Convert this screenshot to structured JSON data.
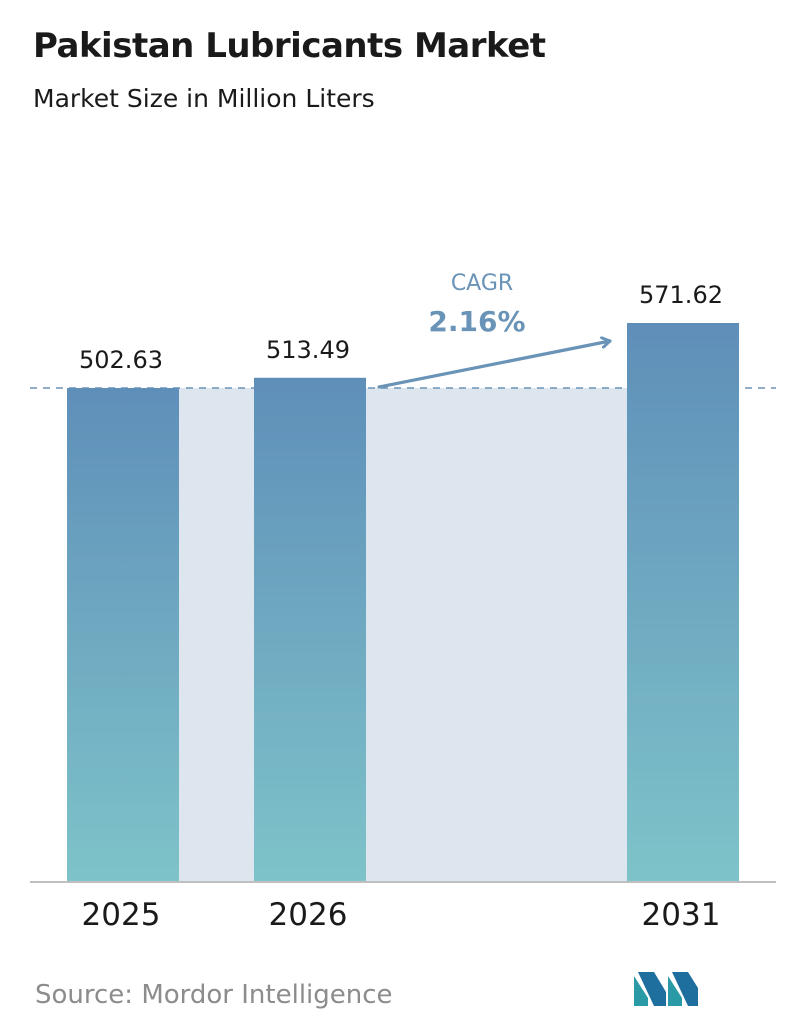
{
  "header": {
    "title": "Pakistan Lubricants Market",
    "subtitle": "Market Size in Million Liters"
  },
  "chart_data": {
    "type": "bar",
    "title": "Pakistan Lubricants Market",
    "subtitle": "Market Size in Million Liters",
    "categories": [
      "2025",
      "2026",
      "2031"
    ],
    "values": [
      502.63,
      513.49,
      571.62
    ],
    "value_labels": [
      "502.63",
      "513.49",
      "571.62"
    ],
    "annotation": {
      "label": "CAGR",
      "value": "2.16%"
    },
    "reference_line": {
      "value": 502.63,
      "style": "dashed"
    },
    "grid": false,
    "legend": "none"
  },
  "colors": {
    "bar_top": "#5f8fb9",
    "bar_bottom": "#7ec3c9",
    "band": "#dde6ef",
    "annotation": "#6a93b8",
    "dashed_line": "#6b93b5",
    "baseline": "#bfbfbf"
  },
  "footer": {
    "source": "Source:  Mordor Intelligence",
    "logo_icon": "mordor-intelligence-logo-icon"
  }
}
